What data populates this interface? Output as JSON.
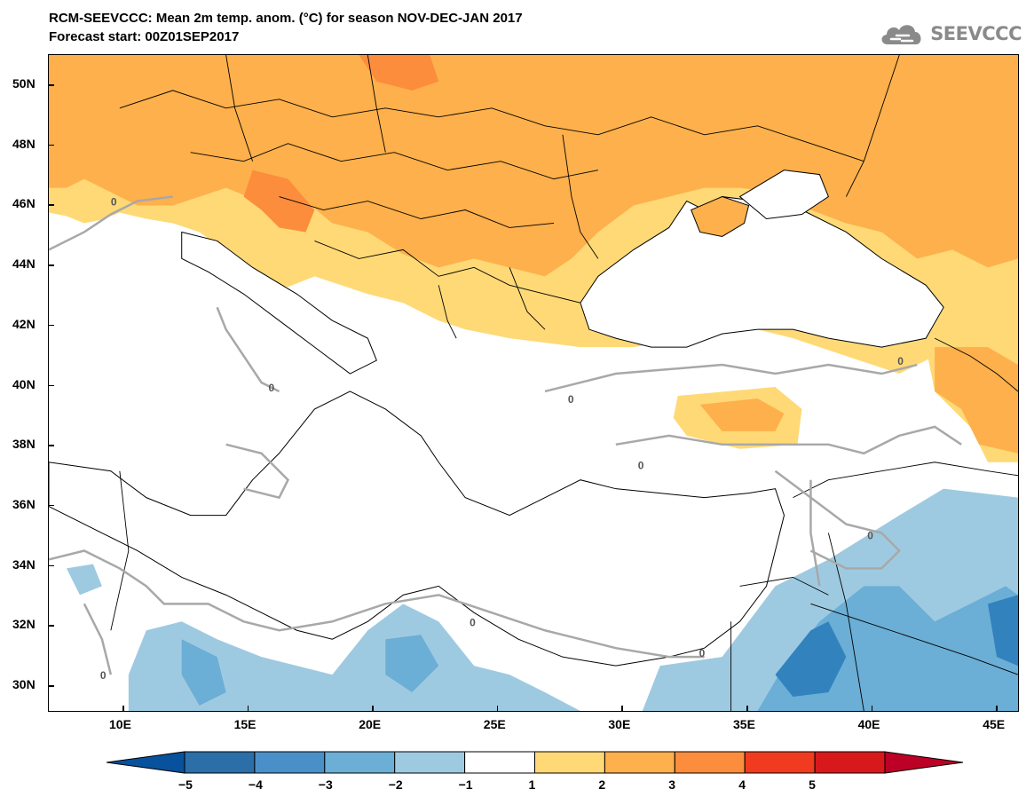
{
  "header": {
    "title_line1": "RCM-SEEVCCC: Mean 2m temp. anom. (°C) for season NOV-DEC-JAN 2017",
    "title_line2": "Forecast start: 00Z01SEP2017"
  },
  "logo": {
    "text": "SEEVCCC",
    "icon": "cloud-icon"
  },
  "map": {
    "lat_labels": [
      "50N",
      "48N",
      "46N",
      "44N",
      "42N",
      "40N",
      "38N",
      "36N",
      "34N",
      "32N",
      "30N"
    ],
    "lon_labels": [
      "10E",
      "15E",
      "20E",
      "25E",
      "30E",
      "35E",
      "40E",
      "45E"
    ],
    "contour_label": "0",
    "colors": {
      "cold_4_3": "#3182bd",
      "cold_3_2": "#6baed6",
      "cold_2_1": "#9ecae1",
      "neutral": "#ffffff",
      "warm_1_2": "#fed976",
      "warm_2_3": "#fdb04b",
      "warm_3_4": "#fc8d3c",
      "warm_4_5": "#f03b20",
      "contour": "#a8a8a8",
      "coast": "#000000"
    }
  },
  "colorbar": {
    "labels": [
      "−5",
      "−4",
      "−3",
      "−2",
      "−1",
      "1",
      "2",
      "3",
      "4",
      "5"
    ],
    "colors": [
      "#08519c",
      "#2b6ea8",
      "#4a90c8",
      "#6baed6",
      "#9ecae1",
      "#ffffff",
      "#fed976",
      "#fdb04b",
      "#fc8d3c",
      "#f03b20",
      "#d7191c",
      "#bd0026"
    ]
  }
}
